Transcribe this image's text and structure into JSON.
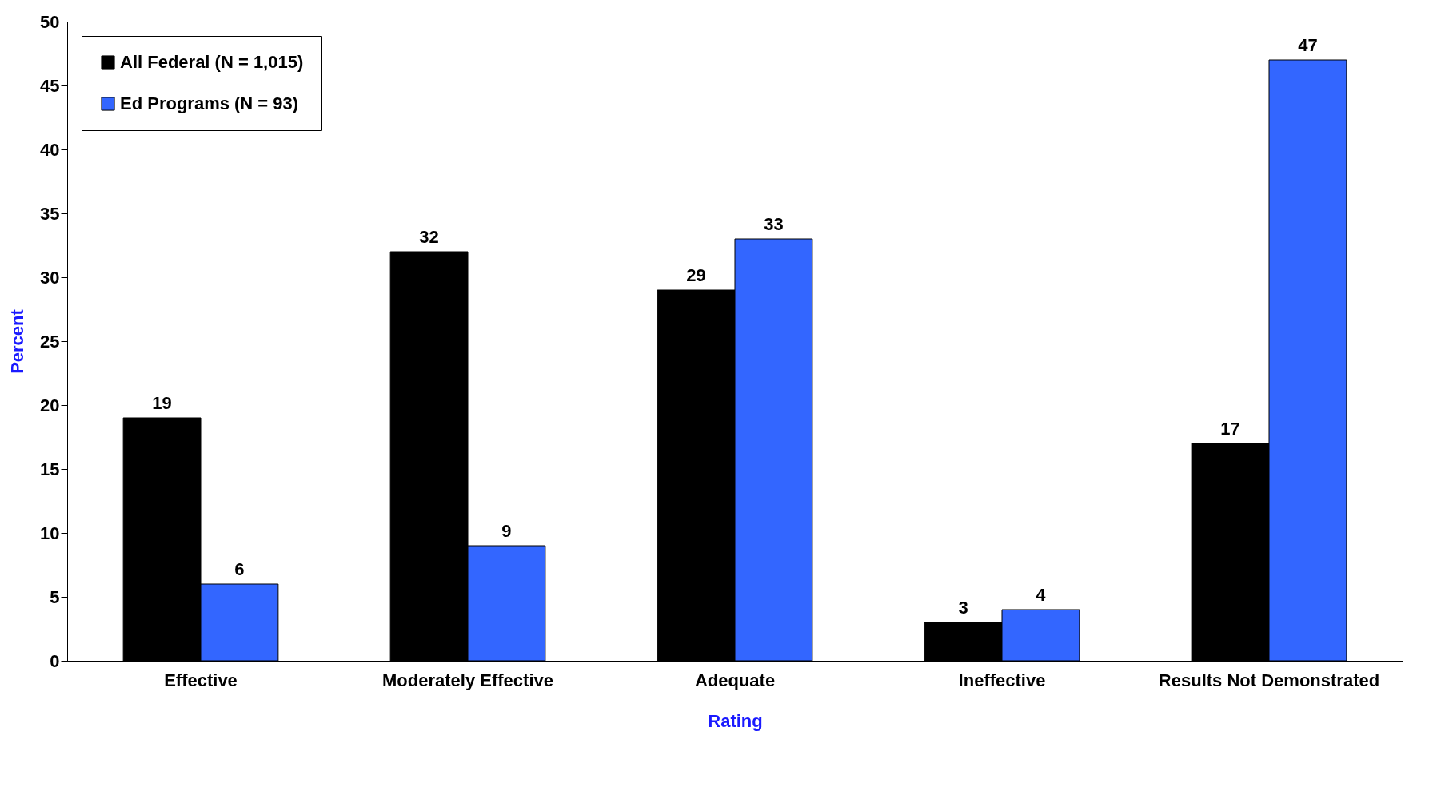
{
  "chart_data": {
    "type": "bar",
    "xlabel": "Rating",
    "ylabel": "Percent",
    "categories": [
      "Effective",
      "Moderately Effective",
      "Adequate",
      "Ineffective",
      "Results Not Demonstrated"
    ],
    "series": [
      {
        "name": "All Federal (N = 1,015)",
        "color": "#000000",
        "values": [
          19,
          32,
          29,
          3,
          17
        ]
      },
      {
        "name": "Ed Programs (N = 93)",
        "color": "#3366ff",
        "values": [
          6,
          9,
          33,
          4,
          47
        ]
      }
    ],
    "ylim": [
      0,
      50
    ],
    "yticks": [
      0,
      5,
      10,
      15,
      20,
      25,
      30,
      35,
      40,
      45,
      50
    ],
    "legend": "top left",
    "data_labels": true
  }
}
